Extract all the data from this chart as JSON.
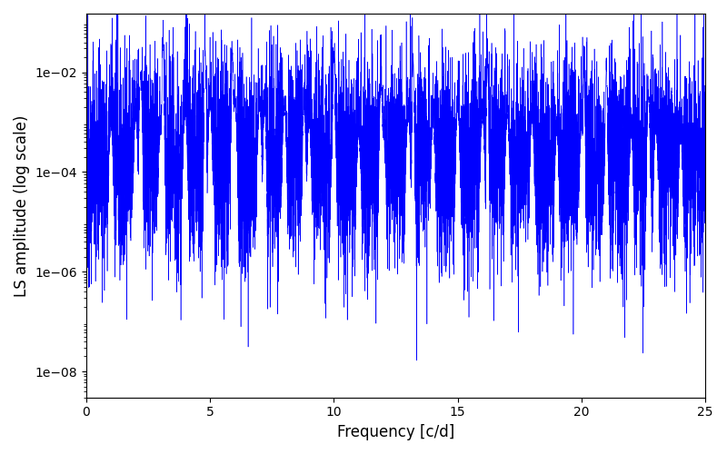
{
  "title": "",
  "xlabel": "Frequency [c/d]",
  "ylabel": "LS amplitude (log scale)",
  "xlim": [
    0,
    25
  ],
  "ylim": [
    3e-09,
    0.15
  ],
  "line_color": "blue",
  "background_color": "white",
  "figsize": [
    8.0,
    5.0
  ],
  "dpi": 100,
  "seed": 12345,
  "n_points": 8000,
  "freq_max": 25.0,
  "base_amplitude": 0.00012,
  "log_noise_std": 2.5,
  "envelope_decay": 20.0,
  "peak_freqs": [
    2.2,
    3.1,
    4.8,
    5.9,
    7.2,
    8.8,
    10.0,
    11.9,
    13.2,
    16.2,
    20.1,
    21.0,
    22.7
  ],
  "peak_amplitudes": [
    0.008,
    0.042,
    0.028,
    0.022,
    0.002,
    0.002,
    0.022,
    0.005,
    0.017,
    0.015,
    0.01,
    0.01,
    0.003
  ],
  "peak_widths": [
    0.03,
    0.02,
    0.02,
    0.02,
    0.03,
    0.03,
    0.02,
    0.03,
    0.02,
    0.02,
    0.02,
    0.02,
    0.03
  ],
  "yticks": [
    1e-08,
    1e-06,
    0.0001,
    0.01
  ]
}
